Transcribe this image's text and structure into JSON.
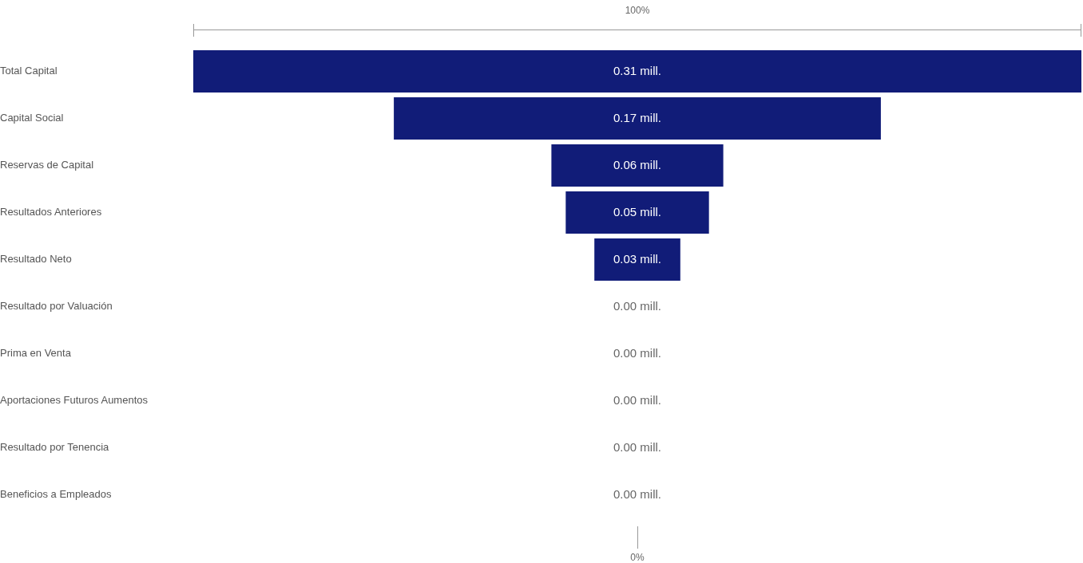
{
  "chart_data": {
    "type": "other",
    "categories": [
      "Total Capital",
      "Capital Social",
      "Reservas de Capital",
      "Resultados Anteriores",
      "Resultado Neto",
      "Resultado por Valuación",
      "Prima en Venta",
      "Aportaciones Futuros Aumentos",
      "Resultado por Tenencia",
      "Beneficios a Empleados"
    ],
    "values": [
      0.31,
      0.17,
      0.06,
      0.05,
      0.03,
      0,
      0,
      0,
      0,
      0
    ],
    "value_labels": [
      "0.31 mill.",
      "0.17 mill.",
      "0.06 mill.",
      "0.05 mill.",
      "0.03 mill.",
      "0.00 mill.",
      "0.00 mill.",
      "0.00 mill.",
      "0.00 mill.",
      "0.00 mill."
    ],
    "color": "#111c78",
    "annotations": [
      "100%",
      "0%"
    ]
  }
}
